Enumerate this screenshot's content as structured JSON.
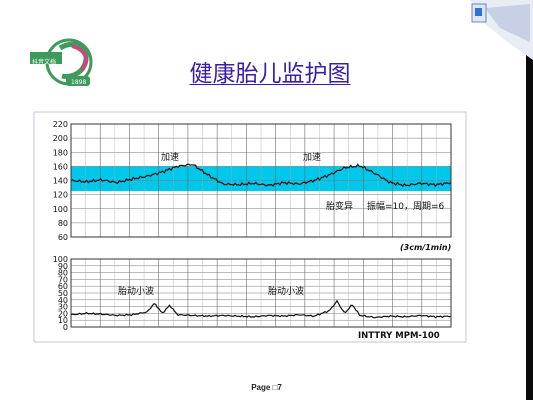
{
  "slide": {
    "title": "健康胎儿监护图",
    "footer": "Page □7",
    "logo_text": "抖音文档",
    "logo_year": "1898"
  },
  "colors": {
    "title": "#3c1fa8",
    "band": "#00c8ea",
    "logo": "#3e9a5a",
    "logo_accent": "#c94a79",
    "dark_bar": "#0b0b0b"
  },
  "chart_data": [
    {
      "type": "line",
      "ylabel": "",
      "xlabel": "",
      "ylim": [
        60,
        220
      ],
      "yticks": [
        60,
        80,
        100,
        120,
        140,
        160,
        180,
        200,
        220
      ],
      "band": [
        125,
        160
      ],
      "annotations": [
        "加速",
        "加速",
        "胎变异",
        "振幅=10，周期=6"
      ],
      "speed_label": "(3cm/1min)",
      "series": [
        {
          "x": [
            0,
            4,
            8,
            12,
            16,
            20,
            24,
            28,
            32,
            36,
            40,
            44,
            48,
            52,
            56,
            60,
            64,
            68,
            72,
            76,
            80,
            84,
            88,
            92,
            96,
            100
          ],
          "values": [
            140,
            138,
            141,
            137,
            142,
            146,
            152,
            160,
            163,
            148,
            135,
            134,
            136,
            133,
            137,
            135,
            140,
            148,
            158,
            161,
            150,
            137,
            133,
            136,
            134,
            137
          ]
        }
      ]
    },
    {
      "type": "line",
      "ylabel": "",
      "xlabel": "",
      "ylim": [
        0,
        100
      ],
      "yticks": [
        0,
        10,
        20,
        30,
        40,
        50,
        60,
        70,
        80,
        90,
        100
      ],
      "annotations": [
        "胎动小波",
        "胎动小波"
      ],
      "device_label": "INTTRY MPM-100",
      "series": [
        {
          "x": [
            0,
            4,
            8,
            12,
            16,
            20,
            22,
            24,
            26,
            28,
            32,
            36,
            40,
            44,
            48,
            52,
            56,
            60,
            64,
            68,
            70,
            72,
            74,
            76,
            80,
            84,
            88,
            92,
            96,
            100
          ],
          "values": [
            18,
            20,
            19,
            17,
            18,
            22,
            35,
            20,
            32,
            18,
            17,
            16,
            17,
            16,
            15,
            17,
            16,
            18,
            16,
            24,
            38,
            20,
            33,
            17,
            14,
            16,
            15,
            17,
            15,
            16
          ]
        }
      ]
    }
  ]
}
